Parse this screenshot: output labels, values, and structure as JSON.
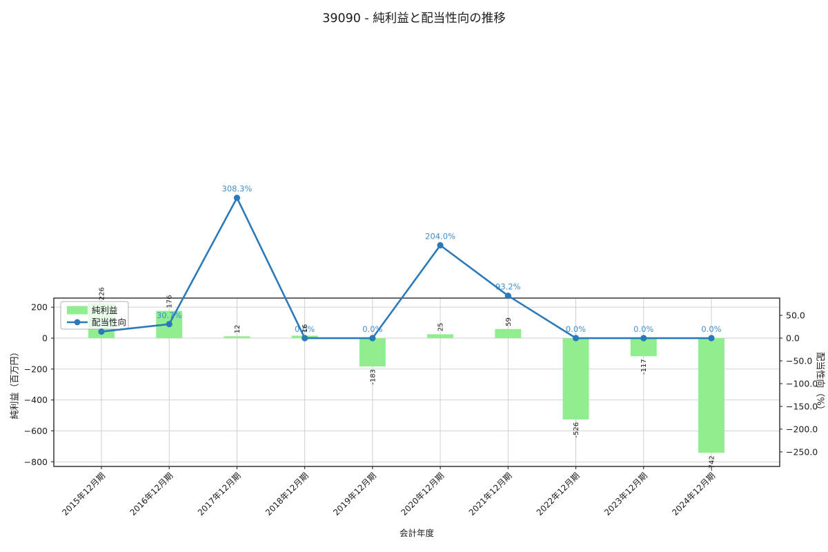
{
  "title": "39090 - 純利益と配当性向の推移",
  "chart_data": {
    "type": "bar+line combo",
    "title": "39090 - 純利益と配当性向の推移",
    "categories": [
      "2015年12月期",
      "2016年12月期",
      "2017年12月期",
      "2018年12月期",
      "2019年12月期",
      "2020年12月期",
      "2021年12月期",
      "2022年12月期",
      "2023年12月期",
      "2024年12月期"
    ],
    "series": [
      {
        "name": "純利益",
        "type": "bar",
        "axis": "left",
        "values": [
          226,
          176,
          12,
          16,
          -183,
          25,
          59,
          -526,
          -117,
          -742
        ],
        "labels": [
          "226",
          "176",
          "12",
          "16",
          "-183",
          "25",
          "59",
          "-526",
          "-117",
          "-742"
        ]
      },
      {
        "name": "配当性向",
        "type": "line",
        "axis": "right",
        "values": [
          14.3,
          30.7,
          308.3,
          0.0,
          0.0,
          204.0,
          93.2,
          0.0,
          0.0,
          0.0
        ],
        "labels": [
          "14.3%",
          "30.7%",
          "308.3%",
          "0.0%",
          "0.0%",
          "204.0%",
          "93.2%",
          "0.0%",
          "0.0%",
          "0.0%"
        ]
      }
    ],
    "xlabel": "会計年度",
    "ylabel_left": "純利益（百万円）",
    "ylabel_right": "配当性向（%）",
    "yticks_left": {
      "values": [
        200,
        0,
        -200,
        -400,
        -600,
        -800
      ],
      "labels": [
        "200",
        "0",
        "−200",
        "−400",
        "−600",
        "−800"
      ]
    },
    "yticks_right": {
      "values": [
        50,
        0,
        -50,
        -100,
        -150,
        -200,
        -250
      ],
      "labels": [
        "50.0",
        "0.0",
        "−50.0",
        "−100.0",
        "−150.0",
        "−200.0",
        "−250.0"
      ]
    },
    "ylim_left": [
      -830,
      259
    ],
    "ylim_right": [
      -282,
      88
    ],
    "grid": true,
    "legend_position": "upper-left",
    "legend": [
      "純利益",
      "配当性向"
    ],
    "colors": {
      "bar": "#90ee90",
      "line": "#2b79b9",
      "annotation": "#3f8ecb",
      "grid": "#c9c9c9",
      "spine": "#262626",
      "text": "#1a1a1a"
    }
  }
}
